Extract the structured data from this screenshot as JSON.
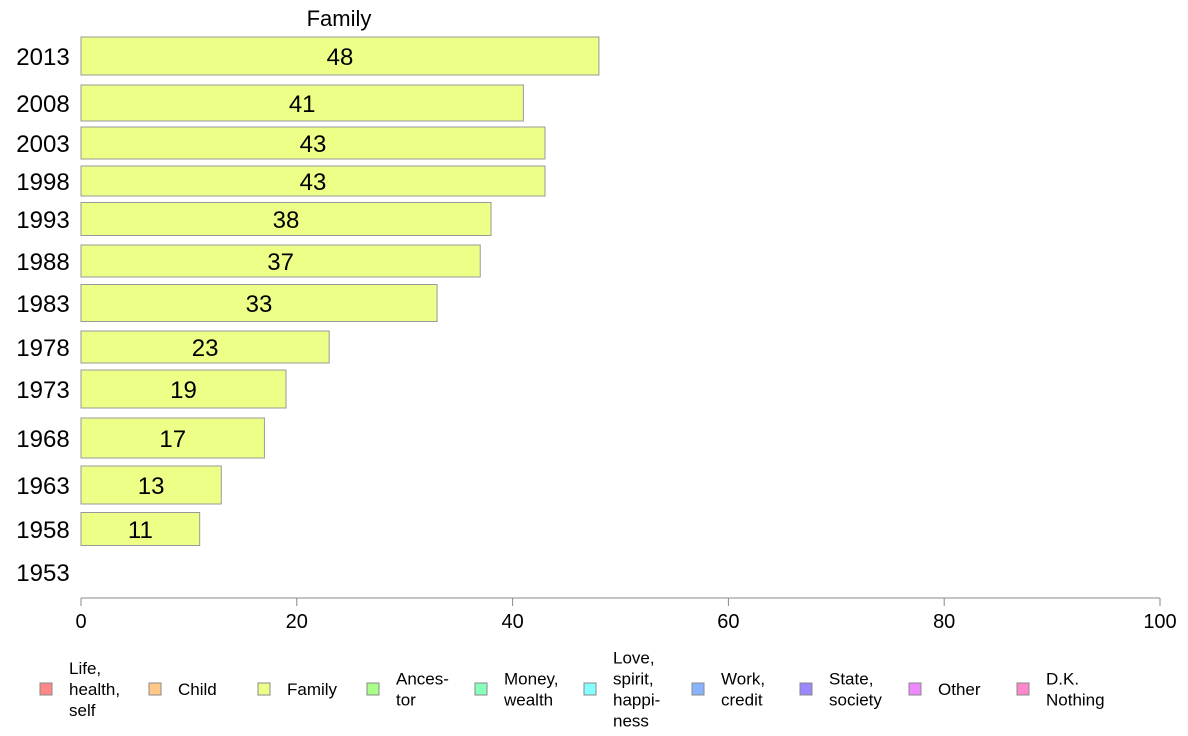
{
  "chart_data": {
    "type": "bar",
    "orientation": "horizontal",
    "title": "Family",
    "xlabel": "",
    "ylabel": "",
    "xlim": [
      0,
      100
    ],
    "xticks": [
      0,
      20,
      40,
      60,
      80,
      100
    ],
    "grid": false,
    "categories": [
      "2013",
      "2008",
      "2003",
      "1998",
      "1993",
      "1988",
      "1983",
      "1978",
      "1973",
      "1968",
      "1963",
      "1958",
      "1953"
    ],
    "series": [
      {
        "name": "Family",
        "color": "#eeff88",
        "values": [
          48,
          41,
          43,
          43,
          38,
          37,
          33,
          23,
          19,
          17,
          13,
          11,
          null
        ],
        "labels": [
          "48",
          "41",
          "43",
          "43",
          "38",
          "37",
          "33",
          "23",
          "19",
          "17",
          "13",
          "11",
          ""
        ]
      }
    ],
    "legend": {
      "placement": "bottom",
      "entries": [
        {
          "lines": [
            "Life,",
            "health,",
            "self"
          ],
          "color": "#ff8888"
        },
        {
          "lines": [
            "Child"
          ],
          "color": "#ffc888"
        },
        {
          "lines": [
            "Family"
          ],
          "color": "#eeff88"
        },
        {
          "lines": [
            "Ances-",
            "tor"
          ],
          "color": "#aaff88"
        },
        {
          "lines": [
            "Money,",
            "wealth"
          ],
          "color": "#88ffbb"
        },
        {
          "lines": [
            "Love,",
            "spirit,",
            "happi-",
            "ness"
          ],
          "color": "#88ffff"
        },
        {
          "lines": [
            "Work,",
            "credit"
          ],
          "color": "#88b4ff"
        },
        {
          "lines": [
            "State,",
            "society"
          ],
          "color": "#9988ff"
        },
        {
          "lines": [
            "Other"
          ],
          "color": "#ee88ff"
        },
        {
          "lines": [
            "D.K.",
            "Nothing"
          ],
          "color": "#ff88cc"
        }
      ]
    }
  }
}
